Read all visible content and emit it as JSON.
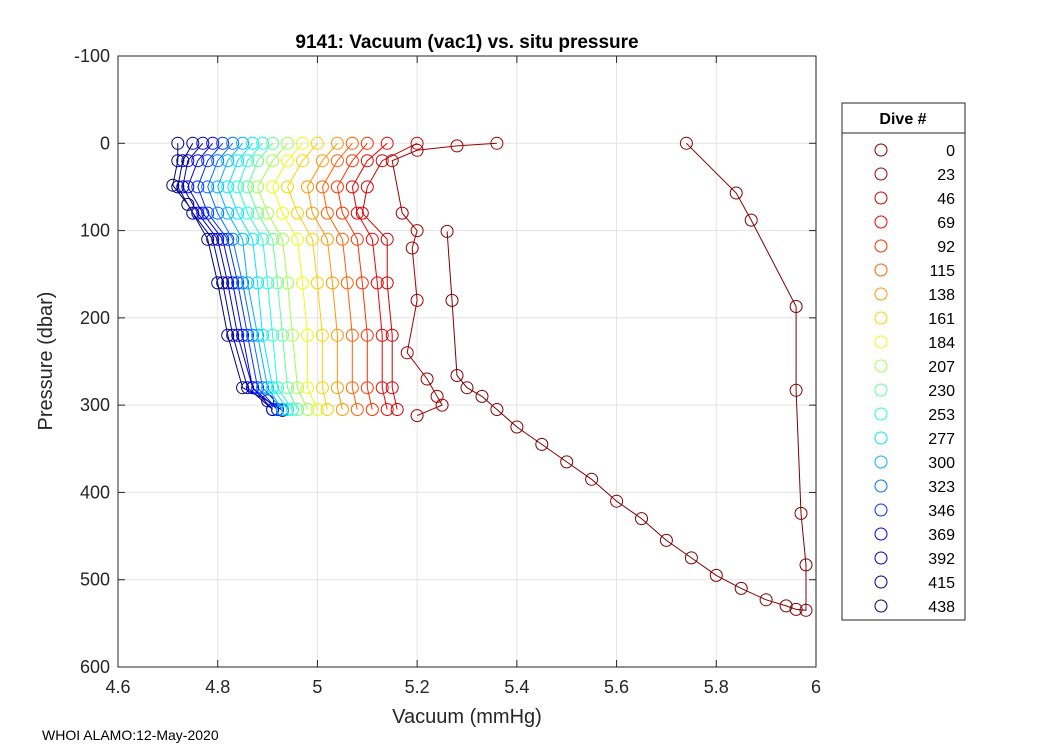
{
  "footer": "WHOI ALAMO:12-May-2020",
  "chart_data": {
    "type": "line",
    "title": "9141: Vacuum (vac1) vs. situ pressure",
    "xlabel": "Vacuum (mmHg)",
    "ylabel": "Pressure (dbar)",
    "xlim": [
      4.6,
      6.0
    ],
    "ylim": [
      -100,
      600
    ],
    "y_reversed": true,
    "grid": true,
    "x_ticks": [
      "4.6",
      "4.8",
      "5",
      "5.2",
      "5.4",
      "5.6",
      "5.8",
      "6"
    ],
    "x_tick_values": [
      4.6,
      4.8,
      5.0,
      5.2,
      5.4,
      5.6,
      5.8,
      6.0
    ],
    "y_ticks": [
      "-100",
      "0",
      "100",
      "200",
      "300",
      "400",
      "500",
      "600"
    ],
    "y_tick_values": [
      -100,
      0,
      100,
      200,
      300,
      400,
      500,
      600
    ],
    "legend": {
      "title": "Dive #",
      "placement": "outside-right",
      "entries": [
        {
          "label": "0",
          "color": "#800000"
        },
        {
          "label": "23",
          "color": "#a00000"
        },
        {
          "label": "46",
          "color": "#d00000"
        },
        {
          "label": "69",
          "color": "#f00000"
        },
        {
          "label": "92",
          "color": "#ff3000"
        },
        {
          "label": "115",
          "color": "#ff6000"
        },
        {
          "label": "138",
          "color": "#ff9800"
        },
        {
          "label": "161",
          "color": "#ffd000"
        },
        {
          "label": "184",
          "color": "#e8ff10"
        },
        {
          "label": "207",
          "color": "#a0ff50"
        },
        {
          "label": "230",
          "color": "#60ff98"
        },
        {
          "label": "253",
          "color": "#20ffd8"
        },
        {
          "label": "277",
          "color": "#00e8ff"
        },
        {
          "label": "300",
          "color": "#00b0ff"
        },
        {
          "label": "323",
          "color": "#0070ff"
        },
        {
          "label": "346",
          "color": "#0030ff"
        },
        {
          "label": "369",
          "color": "#0000f0"
        },
        {
          "label": "392",
          "color": "#0000c0"
        },
        {
          "label": "415",
          "color": "#000090"
        },
        {
          "label": "438",
          "color": "#000070"
        }
      ]
    },
    "series": [
      {
        "name": "0",
        "color": "#800000",
        "x": [
          5.74,
          5.84,
          5.87,
          5.96,
          5.96,
          5.97,
          5.98,
          5.98,
          5.96,
          5.94,
          5.9,
          5.85,
          5.8,
          5.75,
          5.7,
          5.65,
          5.6,
          5.55,
          5.5,
          5.45,
          5.4,
          5.36,
          5.33,
          5.3,
          5.28,
          5.27,
          5.26
        ],
        "y": [
          0,
          57,
          88,
          187,
          283,
          424,
          483,
          535,
          534,
          530,
          523,
          510,
          495,
          475,
          455,
          430,
          410,
          385,
          365,
          345,
          325,
          305,
          290,
          280,
          266,
          180,
          101
        ]
      },
      {
        "name": "23",
        "color": "#a00000",
        "x": [
          5.36,
          5.28,
          5.2,
          5.15,
          5.17,
          5.2,
          5.19,
          5.2,
          5.18,
          5.22,
          5.24,
          5.25,
          5.2
        ],
        "y": [
          0,
          3,
          8,
          20,
          80,
          100,
          120,
          180,
          240,
          270,
          290,
          300,
          312
        ]
      },
      {
        "name": "46",
        "color": "#d00000",
        "x": [
          5.2,
          5.13,
          5.1,
          5.09,
          5.14,
          5.14,
          5.15,
          5.15,
          5.16
        ],
        "y": [
          0,
          20,
          50,
          80,
          110,
          160,
          220,
          280,
          305
        ]
      },
      {
        "name": "69",
        "color": "#f00000",
        "x": [
          5.14,
          5.1,
          5.07,
          5.08,
          5.11,
          5.12,
          5.13,
          5.13,
          5.14
        ],
        "y": [
          0,
          20,
          50,
          80,
          110,
          160,
          220,
          280,
          305
        ]
      },
      {
        "name": "92",
        "color": "#ff3000",
        "x": [
          5.1,
          5.07,
          5.04,
          5.05,
          5.08,
          5.09,
          5.1,
          5.1,
          5.11
        ],
        "y": [
          0,
          20,
          50,
          80,
          110,
          160,
          220,
          280,
          305
        ]
      },
      {
        "name": "115",
        "color": "#ff6000",
        "x": [
          5.07,
          5.04,
          5.01,
          5.02,
          5.05,
          5.06,
          5.07,
          5.07,
          5.08
        ],
        "y": [
          0,
          20,
          50,
          80,
          110,
          160,
          220,
          280,
          305
        ]
      },
      {
        "name": "138",
        "color": "#ff9800",
        "x": [
          5.04,
          5.01,
          4.98,
          4.99,
          5.02,
          5.03,
          5.04,
          5.04,
          5.05
        ],
        "y": [
          0,
          20,
          50,
          80,
          110,
          160,
          220,
          280,
          305
        ]
      },
      {
        "name": "161",
        "color": "#ffd000",
        "x": [
          5.0,
          4.97,
          4.94,
          4.96,
          4.99,
          5.0,
          5.01,
          5.01,
          5.02
        ],
        "y": [
          0,
          20,
          50,
          80,
          110,
          160,
          220,
          280,
          305
        ]
      },
      {
        "name": "184",
        "color": "#e8ff10",
        "x": [
          4.97,
          4.94,
          4.91,
          4.93,
          4.96,
          4.97,
          4.98,
          4.98,
          5.0
        ],
        "y": [
          0,
          20,
          50,
          80,
          110,
          160,
          220,
          280,
          305
        ]
      },
      {
        "name": "207",
        "color": "#a0ff50",
        "x": [
          4.94,
          4.91,
          4.88,
          4.9,
          4.93,
          4.94,
          4.95,
          4.96,
          4.98
        ],
        "y": [
          0,
          20,
          50,
          80,
          110,
          160,
          220,
          280,
          305
        ]
      },
      {
        "name": "230",
        "color": "#60ff98",
        "x": [
          4.91,
          4.88,
          4.86,
          4.88,
          4.91,
          4.92,
          4.93,
          4.94,
          4.96
        ],
        "y": [
          0,
          20,
          50,
          80,
          110,
          160,
          220,
          280,
          305
        ]
      },
      {
        "name": "253",
        "color": "#20ffd8",
        "x": [
          4.89,
          4.86,
          4.84,
          4.86,
          4.89,
          4.9,
          4.91,
          4.92,
          4.95
        ],
        "y": [
          0,
          20,
          50,
          80,
          110,
          160,
          220,
          280,
          305
        ]
      },
      {
        "name": "277",
        "color": "#00e8ff",
        "x": [
          4.87,
          4.84,
          4.82,
          4.84,
          4.87,
          4.88,
          4.89,
          4.91,
          4.94
        ],
        "y": [
          0,
          20,
          50,
          80,
          110,
          160,
          220,
          280,
          305
        ]
      },
      {
        "name": "300",
        "color": "#00b0ff",
        "x": [
          4.85,
          4.82,
          4.8,
          4.82,
          4.85,
          4.86,
          4.88,
          4.9,
          4.93
        ],
        "y": [
          0,
          20,
          50,
          80,
          110,
          160,
          220,
          280,
          305
        ]
      },
      {
        "name": "323",
        "color": "#0070ff",
        "x": [
          4.83,
          4.8,
          4.78,
          4.8,
          4.83,
          4.85,
          4.87,
          4.89,
          4.93
        ],
        "y": [
          0,
          20,
          50,
          80,
          110,
          160,
          220,
          280,
          305
        ]
      },
      {
        "name": "346",
        "color": "#0030ff",
        "x": [
          4.81,
          4.78,
          4.76,
          4.78,
          4.82,
          4.84,
          4.86,
          4.88,
          4.92
        ],
        "y": [
          0,
          20,
          50,
          80,
          110,
          160,
          220,
          280,
          305
        ]
      },
      {
        "name": "369",
        "color": "#0000f0",
        "x": [
          4.79,
          4.76,
          4.74,
          4.77,
          4.81,
          4.83,
          4.85,
          4.87,
          4.92
        ],
        "y": [
          0,
          20,
          50,
          80,
          110,
          160,
          220,
          280,
          305
        ]
      },
      {
        "name": "392",
        "color": "#0000c0",
        "x": [
          4.77,
          4.74,
          4.73,
          4.76,
          4.8,
          4.82,
          4.84,
          4.87,
          4.91
        ],
        "y": [
          0,
          20,
          50,
          80,
          110,
          160,
          220,
          280,
          305
        ]
      },
      {
        "name": "415",
        "color": "#000090",
        "x": [
          4.75,
          4.73,
          4.72,
          4.75,
          4.79,
          4.81,
          4.83,
          4.86,
          4.91
        ],
        "y": [
          0,
          20,
          50,
          80,
          110,
          160,
          220,
          280,
          305
        ]
      },
      {
        "name": "438",
        "color": "#000070",
        "x": [
          4.72,
          4.72,
          4.71,
          4.74,
          4.78,
          4.8,
          4.82,
          4.85,
          4.9,
          4.93
        ],
        "y": [
          0,
          20,
          48,
          70,
          110,
          160,
          220,
          280,
          295,
          306
        ]
      }
    ]
  }
}
